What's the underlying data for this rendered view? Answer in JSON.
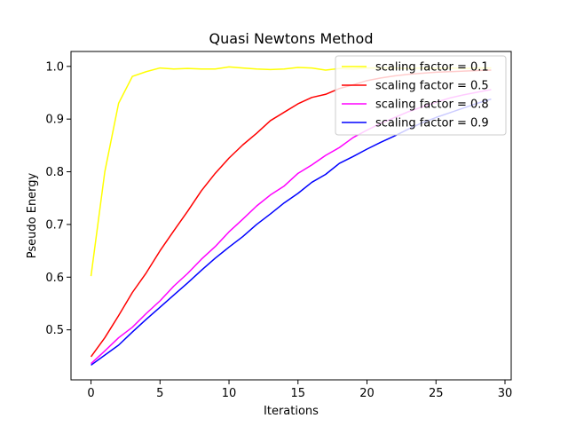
{
  "chart_data": {
    "type": "line",
    "title": "Quasi Newtons Method",
    "xlabel": "Iterations",
    "ylabel": "Pseudo Energy",
    "xlim": [
      -1.45,
      30.45
    ],
    "ylim": [
      0.4051,
      1.0283
    ],
    "xticks": [
      0,
      5,
      10,
      15,
      20,
      25,
      30
    ],
    "yticks": [
      0.5,
      0.6,
      0.7,
      0.8,
      0.9,
      1.0
    ],
    "ytick_labels": [
      "0.5",
      "0.6",
      "0.7",
      "0.8",
      "0.9",
      "1.0"
    ],
    "grid": false,
    "legend_position": "top-right",
    "x": [
      0,
      1,
      2,
      3,
      4,
      5,
      6,
      7,
      8,
      9,
      10,
      11,
      12,
      13,
      14,
      15,
      16,
      17,
      18,
      19,
      20,
      21,
      22,
      23,
      24,
      25,
      26,
      27,
      28,
      29
    ],
    "series": [
      {
        "name": "scaling factor = 0.1",
        "color": "#ffff00",
        "values": [
          0.602,
          0.8,
          0.93,
          0.981,
          0.99,
          0.997,
          0.995,
          0.996,
          0.995,
          0.995,
          0.999,
          0.997,
          0.995,
          0.994,
          0.995,
          0.998,
          0.997,
          0.993,
          0.996,
          0.995,
          0.997,
          0.997,
          0.997,
          0.996,
          0.997,
          0.996,
          0.997,
          0.996,
          0.997,
          0.997
        ]
      },
      {
        "name": "scaling factor = 0.5",
        "color": "#ff0000",
        "values": [
          0.449,
          0.485,
          0.527,
          0.571,
          0.608,
          0.65,
          0.688,
          0.725,
          0.764,
          0.797,
          0.826,
          0.851,
          0.873,
          0.897,
          0.913,
          0.929,
          0.941,
          0.947,
          0.958,
          0.965,
          0.973,
          0.978,
          0.982,
          0.985,
          0.987,
          0.989,
          0.99,
          0.991,
          0.992,
          0.993
        ]
      },
      {
        "name": "scaling factor = 0.8",
        "color": "#ff00ff",
        "values": [
          0.436,
          0.46,
          0.485,
          0.505,
          0.531,
          0.555,
          0.583,
          0.607,
          0.634,
          0.658,
          0.686,
          0.71,
          0.735,
          0.756,
          0.773,
          0.797,
          0.813,
          0.831,
          0.846,
          0.865,
          0.879,
          0.892,
          0.903,
          0.914,
          0.923,
          0.932,
          0.94,
          0.946,
          0.951,
          0.956
        ]
      },
      {
        "name": "scaling factor = 0.9",
        "color": "#0000ff",
        "values": [
          0.433,
          0.452,
          0.471,
          0.496,
          0.52,
          0.543,
          0.566,
          0.589,
          0.613,
          0.636,
          0.657,
          0.677,
          0.7,
          0.72,
          0.741,
          0.759,
          0.78,
          0.795,
          0.816,
          0.829,
          0.843,
          0.856,
          0.868,
          0.881,
          0.893,
          0.903,
          0.912,
          0.921,
          0.93,
          0.938
        ]
      }
    ]
  }
}
